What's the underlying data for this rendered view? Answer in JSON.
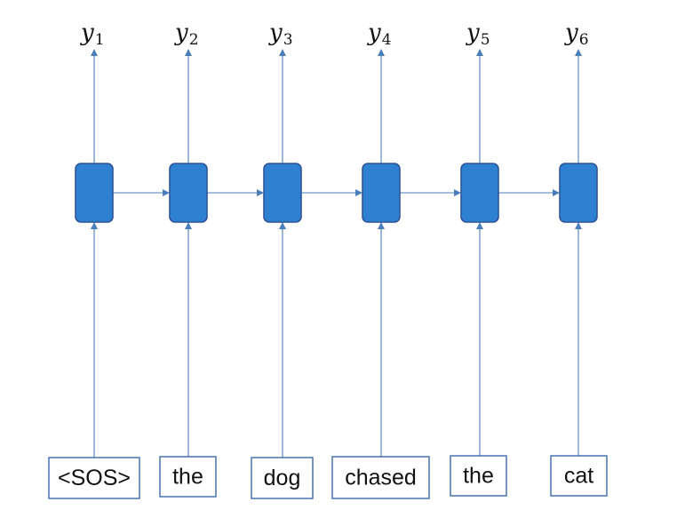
{
  "colors": {
    "cell_fill": "#2e80d0",
    "cell_border": "#2f5597",
    "arrow": "#4a7ebb",
    "box_border": "#3b6aa8",
    "text": "#111111"
  },
  "outputs": [
    {
      "base": "y",
      "sub": "1"
    },
    {
      "base": "y",
      "sub": "2"
    },
    {
      "base": "y",
      "sub": "3"
    },
    {
      "base": "y",
      "sub": "4"
    },
    {
      "base": "y",
      "sub": "5"
    },
    {
      "base": "y",
      "sub": "6"
    }
  ],
  "inputs": [
    "<SOS>",
    "the",
    "dog",
    "chased",
    "the",
    "cat"
  ]
}
